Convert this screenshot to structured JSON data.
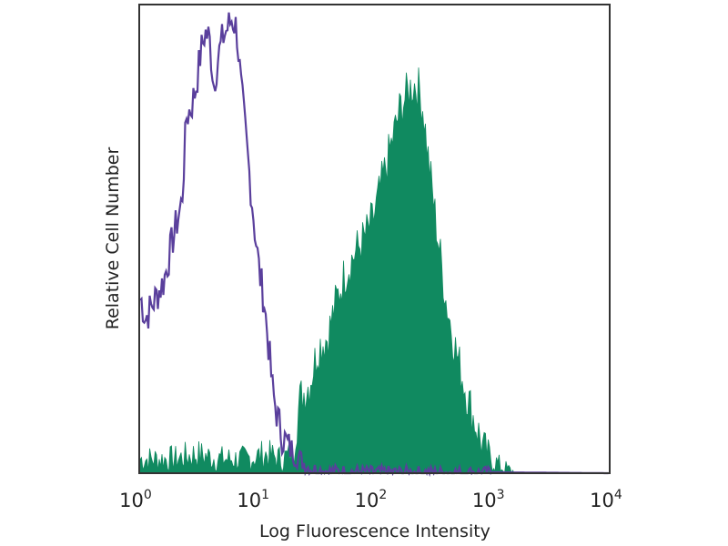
{
  "chart_data": {
    "type": "area",
    "title": "",
    "xlabel": "Log Fluorescence Intensity",
    "ylabel": "Relative Cell Number",
    "x_scale": "log",
    "xlim": [
      1,
      10000
    ],
    "ylim": [
      0,
      100
    ],
    "grid": false,
    "legend": "none",
    "x_ticks": [
      {
        "base": "10",
        "exp": "0",
        "value": 1
      },
      {
        "base": "10",
        "exp": "1",
        "value": 10
      },
      {
        "base": "10",
        "exp": "2",
        "value": 100
      },
      {
        "base": "10",
        "exp": "3",
        "value": 1000
      },
      {
        "base": "10",
        "exp": "4",
        "value": 10000
      }
    ],
    "series": [
      {
        "style": "outline",
        "color": "#5a3f9c",
        "x": [
          1.04,
          1.13,
          1.35,
          1.62,
          1.93,
          2.31,
          2.52,
          2.76,
          3.02,
          3.3,
          3.61,
          3.94,
          4.31,
          4.71,
          5.15,
          5.63,
          6.15,
          6.73,
          7.36,
          8.04,
          8.79,
          9.61,
          10.5,
          11.5,
          12.6,
          13.7,
          15.0,
          16.4,
          19.6,
          23.4,
          28.0,
          40,
          100,
          1000,
          10000
        ],
        "y": [
          37,
          33,
          37,
          41,
          50,
          58,
          76,
          78,
          82,
          89,
          94,
          93,
          83,
          89,
          93,
          95,
          97,
          95,
          82,
          72,
          62,
          52,
          43,
          37,
          27,
          17,
          12,
          8,
          5,
          3,
          1,
          0.5,
          0.3,
          0.2,
          0
        ]
      },
      {
        "style": "filled",
        "color": "#108a60",
        "x": [
          1.04,
          2,
          3,
          5,
          8,
          12,
          16,
          20,
          23.4,
          28.0,
          33.4,
          39.9,
          47.7,
          57.0,
          68.2,
          81.5,
          97.3,
          116,
          139,
          166,
          199,
          217,
          237,
          259,
          284,
          339,
          405,
          484,
          578,
          691,
          826,
          986,
          1180,
          1410,
          1680,
          10000
        ],
        "y": [
          3,
          3,
          4,
          3,
          3,
          4,
          3,
          4,
          16,
          19,
          27,
          29,
          37,
          43,
          47,
          50,
          54,
          62,
          70,
          78,
          82,
          83,
          82,
          78,
          68,
          52,
          37,
          27,
          19,
          12,
          6,
          3,
          1.5,
          0.5,
          0,
          0
        ]
      }
    ]
  }
}
